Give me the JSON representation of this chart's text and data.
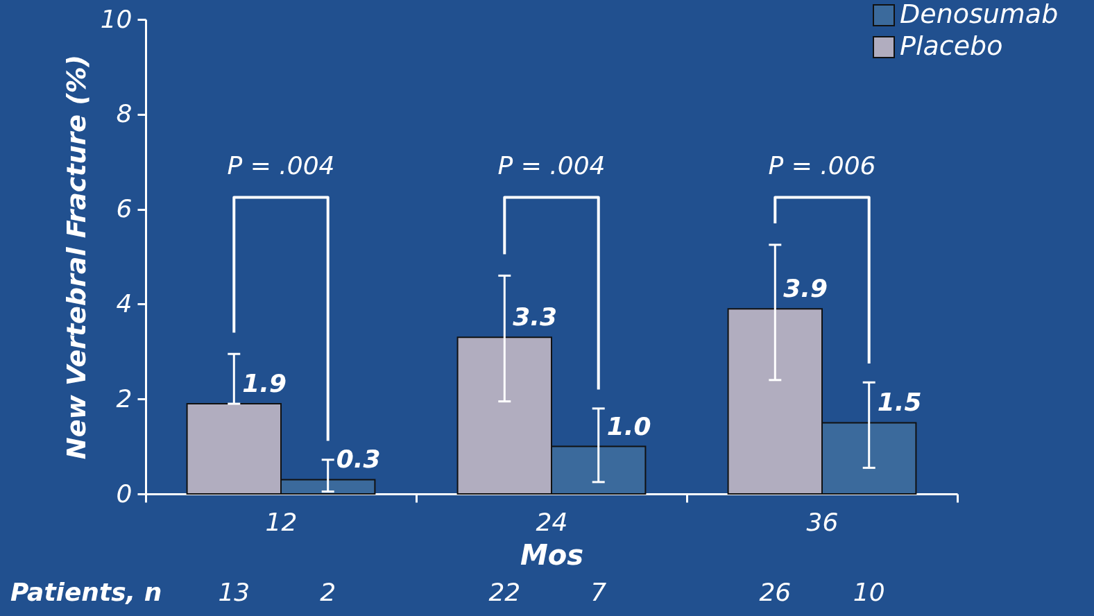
{
  "chart_data": {
    "type": "bar",
    "xlabel": "Mos",
    "ylabel": "New Vertebral Fracture (%)",
    "categories": [
      "12",
      "24",
      "36"
    ],
    "series": [
      {
        "name": "Denosumab",
        "color": "#3b6a9c",
        "values": [
          0.3,
          1.0,
          1.5
        ],
        "value_labels": [
          "0.3",
          "1.0",
          "1.5"
        ],
        "errors": [
          [
            0.05,
            0.72
          ],
          [
            0.25,
            1.8
          ],
          [
            0.55,
            2.35
          ]
        ]
      },
      {
        "name": "Placebo",
        "color": "#b1adbf",
        "values": [
          1.9,
          3.3,
          3.9
        ],
        "value_labels": [
          "1.9",
          "3.3",
          "3.9"
        ],
        "errors": [
          [
            1.9,
            2.95
          ],
          [
            1.95,
            4.6
          ],
          [
            2.4,
            5.25
          ]
        ]
      }
    ],
    "ylim": [
      0,
      10
    ],
    "yticks": [
      0,
      2,
      4,
      6,
      8,
      10
    ],
    "grid": false,
    "legend": "top right",
    "annotations": [
      "P = .004",
      "P = .004",
      "P = .006",
      "Patients, n",
      "13",
      "2",
      "22",
      "7",
      "26",
      "10"
    ]
  }
}
